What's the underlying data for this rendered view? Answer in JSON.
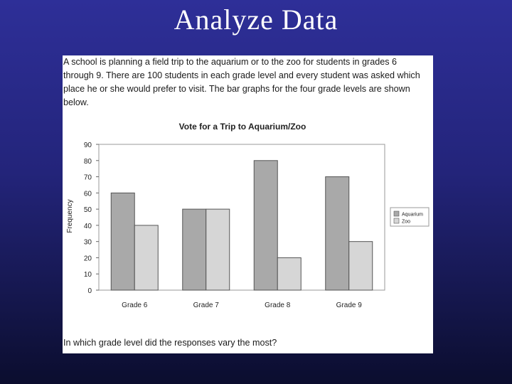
{
  "slide": {
    "title": "Analyze Data"
  },
  "problem": {
    "intro": "A school is planning a field trip to the aquarium or to the zoo for students in grades 6 through 9. There are 100 students in each grade level and every student was asked which place he or she would prefer to visit. The bar graphs for the four grade levels are shown below.",
    "question": "In which grade level did the responses vary the most?"
  },
  "colors": {
    "aquarium": "#a9a9a9",
    "zoo": "#d6d6d6",
    "bar_stroke": "#555555"
  },
  "chart_data": {
    "type": "bar",
    "title": "Vote for a Trip to Aquarium/Zoo",
    "xlabel": "",
    "ylabel": "Frequency",
    "categories": [
      "Grade 6",
      "Grade 7",
      "Grade 8",
      "Grade 9"
    ],
    "series": [
      {
        "name": "Aquarium",
        "values": [
          60,
          50,
          80,
          70
        ]
      },
      {
        "name": "Zoo",
        "values": [
          40,
          50,
          20,
          30
        ]
      }
    ],
    "ylim": [
      0,
      90
    ],
    "yticks": [
      0,
      10,
      20,
      30,
      40,
      50,
      60,
      70,
      80,
      90
    ],
    "grid": false,
    "legend": "right"
  }
}
